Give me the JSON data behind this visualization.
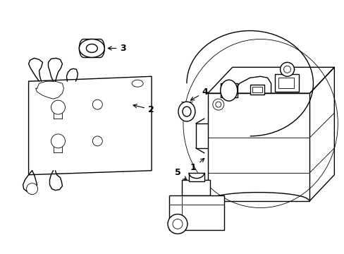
{
  "background_color": "#ffffff",
  "line_color": "#000000",
  "lw": 1.0,
  "tlw": 0.6,
  "fig_width": 4.89,
  "fig_height": 3.6,
  "dpi": 100
}
